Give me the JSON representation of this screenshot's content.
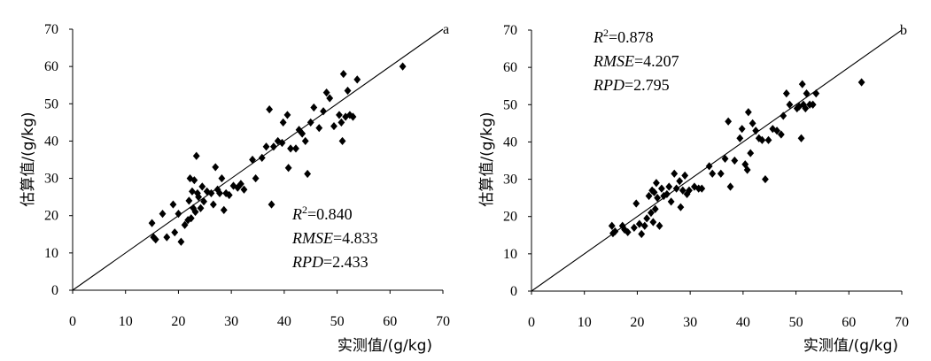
{
  "chart_data": [
    {
      "type": "scatter",
      "panel_label": "a",
      "xlabel": "实测值/(g/kg)",
      "ylabel": "估算值/(g/kg)",
      "xlim": [
        0,
        70
      ],
      "ylim": [
        0,
        70
      ],
      "xticks": [
        "0",
        "10",
        "20",
        "30",
        "40",
        "50",
        "60",
        "70"
      ],
      "yticks": [
        "0",
        "10",
        "20",
        "30",
        "40",
        "50",
        "60",
        "70"
      ],
      "reference_line": "1:1",
      "stats": {
        "r2_label": "R",
        "r2_sup": "2",
        "r2_value": "=0.840",
        "rmse_label": "RMSE",
        "rmse_value": "=4.833",
        "rpd_label": "RPD",
        "rpd_value": "=2.433"
      },
      "stats_position": "bottom-right",
      "marker": "diamond",
      "points": [
        [
          15,
          18
        ],
        [
          15.3,
          14.2
        ],
        [
          15.7,
          13.6
        ],
        [
          17,
          20.5
        ],
        [
          17.8,
          14.2
        ],
        [
          19,
          23
        ],
        [
          19.3,
          15.5
        ],
        [
          20,
          20.5
        ],
        [
          20.5,
          13
        ],
        [
          21.2,
          17.5
        ],
        [
          21.8,
          18.8
        ],
        [
          22,
          24
        ],
        [
          22.2,
          30
        ],
        [
          22.4,
          19.3
        ],
        [
          22.6,
          26.5
        ],
        [
          22.8,
          22
        ],
        [
          23,
          29.5
        ],
        [
          23.2,
          21
        ],
        [
          23.4,
          36
        ],
        [
          23.6,
          26
        ],
        [
          23.8,
          25
        ],
        [
          24.2,
          22
        ],
        [
          24.5,
          27.8
        ],
        [
          24.8,
          23.8
        ],
        [
          25.4,
          26.5
        ],
        [
          26.2,
          26
        ],
        [
          26.6,
          23
        ],
        [
          27,
          33
        ],
        [
          27.4,
          27
        ],
        [
          27.8,
          26
        ],
        [
          28.2,
          30
        ],
        [
          28.6,
          21.5
        ],
        [
          29,
          26
        ],
        [
          29.6,
          25.5
        ],
        [
          30.4,
          28
        ],
        [
          31.2,
          27.5
        ],
        [
          31.8,
          28.5
        ],
        [
          32.4,
          27
        ],
        [
          34,
          35
        ],
        [
          34.6,
          30
        ],
        [
          35.8,
          35.5
        ],
        [
          36.6,
          38.5
        ],
        [
          37.2,
          48.5
        ],
        [
          37.6,
          23
        ],
        [
          38,
          38.5
        ],
        [
          38.8,
          40
        ],
        [
          39.6,
          39.5
        ],
        [
          39.8,
          45
        ],
        [
          40.6,
          47
        ],
        [
          40.8,
          32.8
        ],
        [
          41.2,
          38
        ],
        [
          42.2,
          38
        ],
        [
          42.8,
          43
        ],
        [
          43.4,
          42
        ],
        [
          44,
          40
        ],
        [
          44.4,
          31.2
        ],
        [
          45,
          45
        ],
        [
          45.6,
          49
        ],
        [
          46.6,
          43.5
        ],
        [
          47.4,
          48
        ],
        [
          48,
          53
        ],
        [
          48.6,
          51.5
        ],
        [
          49.4,
          44
        ],
        [
          50.4,
          47
        ],
        [
          50.8,
          45
        ],
        [
          51,
          40
        ],
        [
          51.2,
          58
        ],
        [
          51.6,
          46.5
        ],
        [
          52,
          53.5
        ],
        [
          52.4,
          47
        ],
        [
          53,
          46.5
        ],
        [
          53.8,
          56.5
        ],
        [
          62.4,
          60
        ]
      ]
    },
    {
      "type": "scatter",
      "panel_label": "b",
      "xlabel": "实测值/(g/kg)",
      "ylabel": "估算值/(g/kg)",
      "xlim": [
        0,
        70
      ],
      "ylim": [
        0,
        70
      ],
      "xticks": [
        "0",
        "10",
        "20",
        "30",
        "40",
        "50",
        "60",
        "70"
      ],
      "yticks": [
        "0",
        "10",
        "20",
        "30",
        "40",
        "50",
        "60",
        "70"
      ],
      "reference_line": "1:1",
      "stats": {
        "r2_label": "R",
        "r2_sup": "2",
        "r2_value": "=0.878",
        "rmse_label": "RMSE",
        "rmse_value": "=4.207",
        "rpd_label": "RPD",
        "rpd_value": "=2.795"
      },
      "stats_position": "top-left",
      "marker": "diamond",
      "points": [
        [
          15.2,
          17.5
        ],
        [
          15.4,
          15.5
        ],
        [
          15.8,
          16
        ],
        [
          17.2,
          17.5
        ],
        [
          17.6,
          16.5
        ],
        [
          18.2,
          15.8
        ],
        [
          19.4,
          17
        ],
        [
          19.8,
          23.5
        ],
        [
          20.4,
          18
        ],
        [
          20.8,
          15.3
        ],
        [
          21.4,
          17.5
        ],
        [
          21.8,
          19.5
        ],
        [
          22.2,
          25.5
        ],
        [
          22.6,
          21
        ],
        [
          22.8,
          27
        ],
        [
          23,
          18.5
        ],
        [
          23.2,
          26.5
        ],
        [
          23.4,
          22
        ],
        [
          23.6,
          29
        ],
        [
          23.8,
          25
        ],
        [
          24.2,
          17.5
        ],
        [
          24.6,
          27.5
        ],
        [
          25,
          25.5
        ],
        [
          25.6,
          26
        ],
        [
          26,
          28
        ],
        [
          26.4,
          24
        ],
        [
          27,
          31.5
        ],
        [
          27.4,
          27.5
        ],
        [
          28,
          29.5
        ],
        [
          28.2,
          22.5
        ],
        [
          28.6,
          27
        ],
        [
          29,
          31
        ],
        [
          29.4,
          26
        ],
        [
          29.8,
          27
        ],
        [
          30.8,
          28
        ],
        [
          31.6,
          27.5
        ],
        [
          32.2,
          27.5
        ],
        [
          33.6,
          33.5
        ],
        [
          34.2,
          31.5
        ],
        [
          35.8,
          31.5
        ],
        [
          36.6,
          35.5
        ],
        [
          37.2,
          45.5
        ],
        [
          37.6,
          28
        ],
        [
          38.4,
          35
        ],
        [
          39.4,
          41
        ],
        [
          39.8,
          43.5
        ],
        [
          40.4,
          34
        ],
        [
          40.8,
          32.5
        ],
        [
          41,
          48
        ],
        [
          41.4,
          37
        ],
        [
          41.8,
          45
        ],
        [
          42.4,
          43
        ],
        [
          43,
          41
        ],
        [
          43.6,
          40.5
        ],
        [
          44.2,
          30
        ],
        [
          44.8,
          40.5
        ],
        [
          45.6,
          43.5
        ],
        [
          46.4,
          43
        ],
        [
          47.2,
          42
        ],
        [
          47.6,
          47
        ],
        [
          48.2,
          53
        ],
        [
          48.8,
          50
        ],
        [
          50.2,
          49
        ],
        [
          50.6,
          49.5
        ],
        [
          51,
          41
        ],
        [
          51.2,
          55.5
        ],
        [
          51.4,
          50
        ],
        [
          51.8,
          49
        ],
        [
          52,
          53
        ],
        [
          52.6,
          50
        ],
        [
          53.2,
          50
        ],
        [
          53.8,
          53
        ],
        [
          62.4,
          56
        ]
      ]
    }
  ]
}
